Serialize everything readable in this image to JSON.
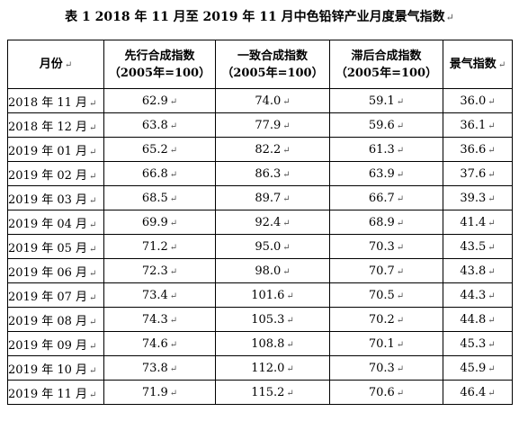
{
  "table_title": "表 1 2018 年 11 月至 2019 年 11 月中色铅锌产业月度景气指数",
  "para_mark": "↵",
  "headers": [
    {
      "line1": "月份",
      "line2": ""
    },
    {
      "line1": "先行合成指数",
      "line2": "（2005年=100）"
    },
    {
      "line1": "一致合成指数",
      "line2": "（2005年=100）"
    },
    {
      "line1": "滞后合成指数",
      "line2": "（2005年=100）"
    },
    {
      "line1": "景气指数",
      "line2": ""
    }
  ],
  "rows": [
    {
      "month": "2018 年 11 月",
      "leading": "62.9",
      "coincident": "74.0",
      "lagging": "59.1",
      "climate": "36.0"
    },
    {
      "month": "2018 年 12 月",
      "leading": "63.8",
      "coincident": "77.9",
      "lagging": "59.6",
      "climate": "36.1"
    },
    {
      "month": "2019 年 01 月",
      "leading": "65.2",
      "coincident": "82.2",
      "lagging": "61.3",
      "climate": "36.6"
    },
    {
      "month": "2019 年 02 月",
      "leading": "66.8",
      "coincident": "86.3",
      "lagging": "63.9",
      "climate": "37.6"
    },
    {
      "month": "2019 年 03 月",
      "leading": "68.5",
      "coincident": "89.7",
      "lagging": "66.7",
      "climate": "39.3"
    },
    {
      "month": "2019 年 04 月",
      "leading": "69.9",
      "coincident": "92.4",
      "lagging": "68.9",
      "climate": "41.4"
    },
    {
      "month": "2019 年 05 月",
      "leading": "71.2",
      "coincident": "95.0",
      "lagging": "70.3",
      "climate": "43.5"
    },
    {
      "month": "2019 年 06 月",
      "leading": "72.3",
      "coincident": "98.0",
      "lagging": "70.7",
      "climate": "43.8"
    },
    {
      "month": "2019 年 07 月",
      "leading": "73.4",
      "coincident": "101.6",
      "lagging": "70.5",
      "climate": "44.3"
    },
    {
      "month": "2019 年 08 月",
      "leading": "74.3",
      "coincident": "105.3",
      "lagging": "70.2",
      "climate": "44.8"
    },
    {
      "month": "2019 年 09 月",
      "leading": "74.6",
      "coincident": "108.8",
      "lagging": "70.1",
      "climate": "45.3"
    },
    {
      "month": "2019 年 10 月",
      "leading": "73.8",
      "coincident": "112.0",
      "lagging": "70.3",
      "climate": "45.9"
    },
    {
      "month": "2019 年 11 月",
      "leading": "71.9",
      "coincident": "115.2",
      "lagging": "70.6",
      "climate": "46.4"
    }
  ]
}
